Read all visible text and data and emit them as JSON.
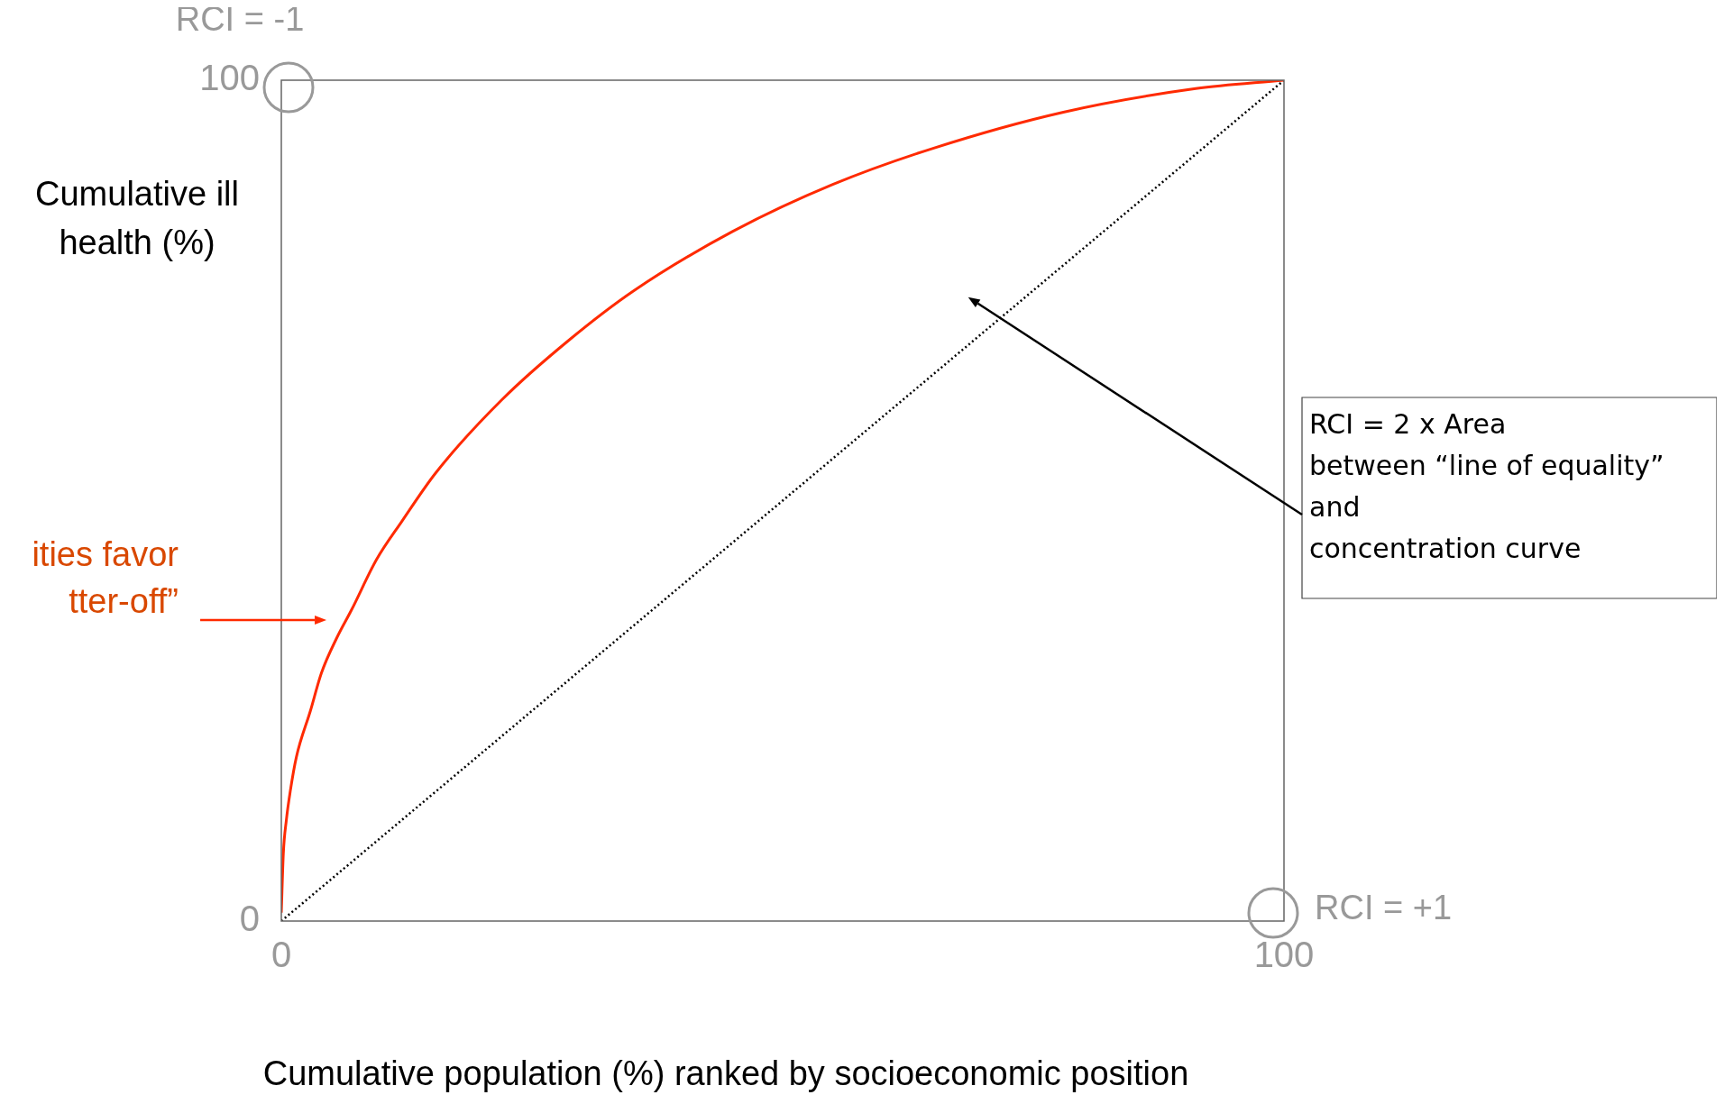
{
  "chart_data": {
    "type": "line",
    "xlabel": "Cumulative population (%) ranked by socioeconomic position",
    "ylabel": "Cumulative ill health (%)",
    "xlim": [
      0,
      100
    ],
    "ylim": [
      0,
      100
    ],
    "xticks": [
      0,
      100
    ],
    "yticks": [
      0,
      100
    ],
    "grid": false,
    "legend": false,
    "series": [
      {
        "color": "#ff2a00",
        "line_style": "solid",
        "x": [
          0,
          0.2,
          0.5,
          0.9,
          1.5,
          2.9,
          4,
          5.5,
          7,
          9.5,
          12,
          15.4,
          22,
          28.6,
          35.2,
          45,
          55,
          65,
          78,
          91.2,
          100
        ],
        "values": [
          1,
          8,
          12,
          15.5,
          19.5,
          25,
          29.5,
          33.6,
          37,
          43,
          47.5,
          53.3,
          62,
          69,
          75,
          82,
          87.6,
          91.9,
          96.2,
          99,
          100
        ]
      },
      {
        "color": "#000000",
        "line_style": "dotted",
        "x": [
          0,
          100
        ],
        "values": [
          0,
          100
        ]
      }
    ],
    "annotations": [
      "RCI = -1",
      "RCI = +1",
      "RCI = 2 x Area\nbetween “line of equality”\nand\nconcentration curve",
      "ities favor\ntter-off”"
    ]
  }
}
